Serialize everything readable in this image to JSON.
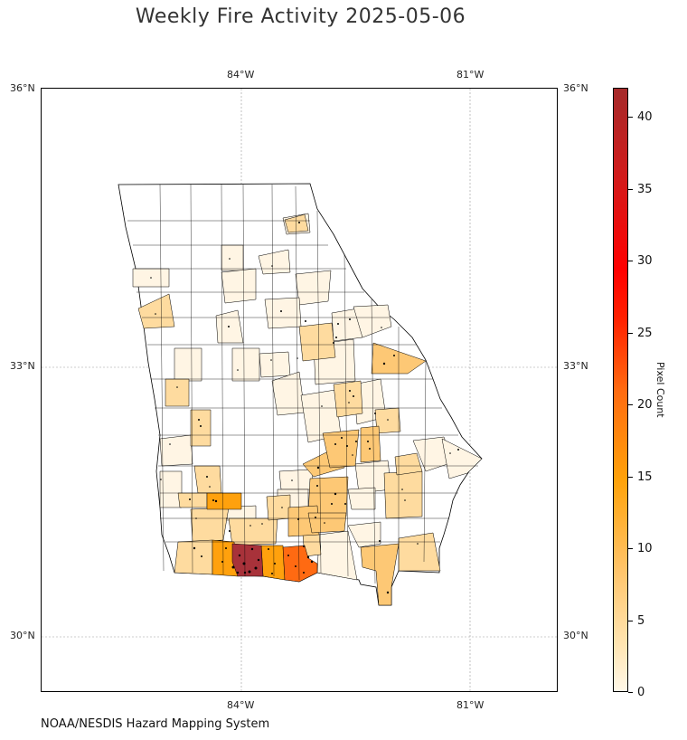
{
  "title": "Weekly Fire Activity 2025-05-06",
  "source": "NOAA/NESDIS Hazard Mapping System",
  "longitude_ticks": [
    "84°W",
    "81°W"
  ],
  "latitude_ticks": [
    "36°N",
    "33°N",
    "30°N"
  ],
  "colorbar": {
    "label": "Pixel Count",
    "ticks": [
      "0",
      "5",
      "10",
      "15",
      "20",
      "25",
      "30",
      "35",
      "40"
    ],
    "min": 0,
    "max": 42
  },
  "colors": {
    "none": "#ffffff",
    "very_low": "#fff5e4",
    "low": "#fedb9f",
    "medium_low": "#fdc875",
    "medium": "#ffa10d",
    "high": "#ff6a12",
    "very_high": "#a8323a"
  }
}
